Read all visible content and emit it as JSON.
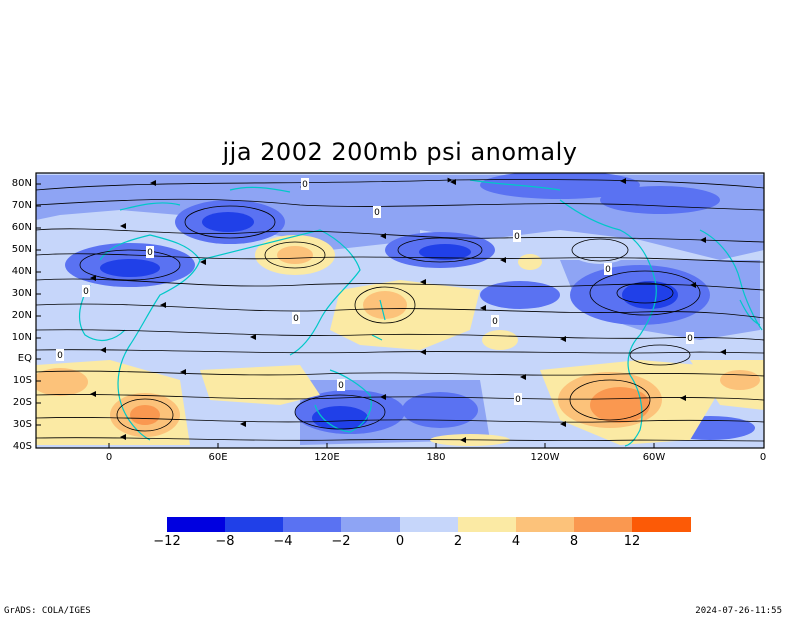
{
  "title": "jja 2002 200mb psi anomaly",
  "lat_labels": [
    "80N",
    "70N",
    "60N",
    "50N",
    "40N",
    "30N",
    "20N",
    "10N",
    "EQ",
    "10S",
    "20S",
    "30S",
    "40S"
  ],
  "lon_labels": [
    "0",
    "60E",
    "120E",
    "180",
    "120W",
    "60W",
    "0"
  ],
  "colorbar": {
    "tick_labels": [
      "−12",
      "−8",
      "−4",
      "−2",
      "0",
      "2",
      "4",
      "8",
      "12"
    ],
    "colors": [
      "#0000e0",
      "#2040e8",
      "#5a72f2",
      "#8ea4f4",
      "#c6d6fa",
      "#fbeaa4",
      "#fcc27a",
      "#fa9850",
      "#fc5a06"
    ]
  },
  "contour_labels": [
    "0",
    "0",
    "0",
    "0",
    "0",
    "0",
    "0",
    "0",
    "0",
    "0",
    "0",
    "0"
  ],
  "footer": {
    "left": "GrADS: COLA/IGES",
    "right": "2024-07-26-11:55"
  }
}
